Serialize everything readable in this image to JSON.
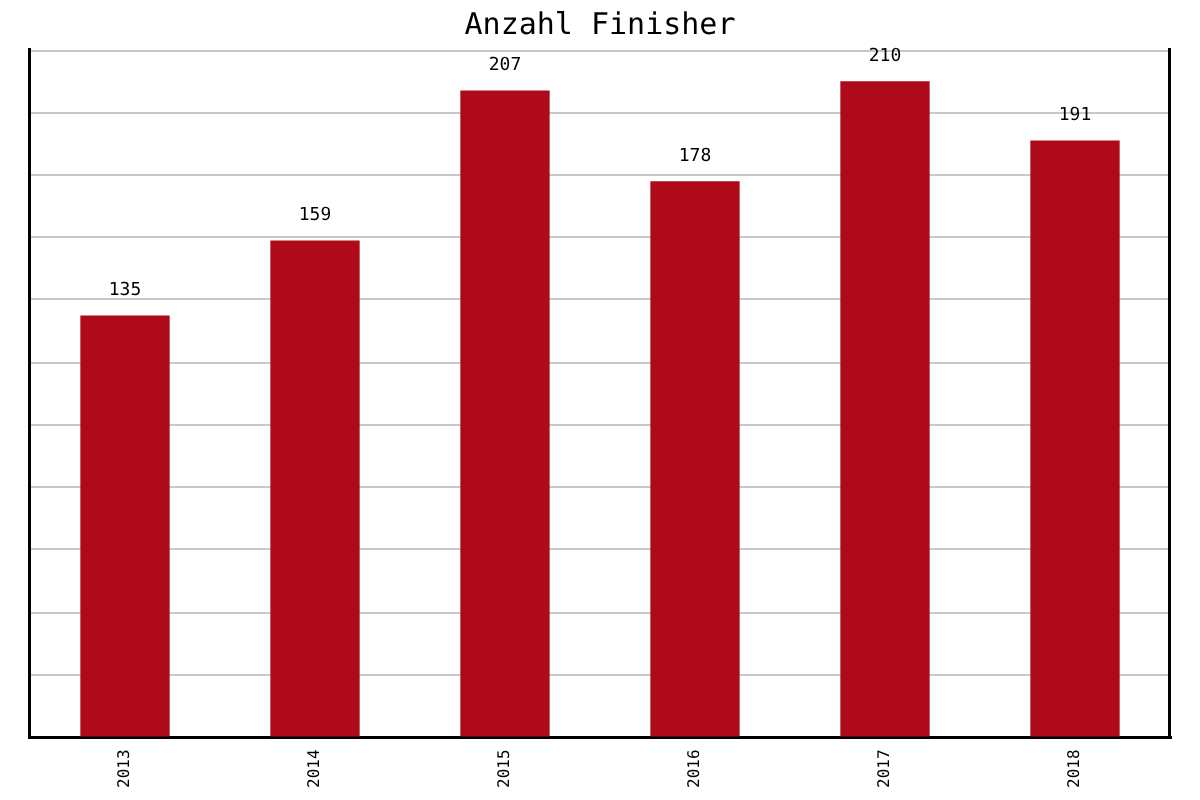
{
  "chart_data": {
    "type": "bar",
    "title": "Anzahl Finisher",
    "categories": [
      "2013",
      "2014",
      "2015",
      "2016",
      "2017",
      "2018"
    ],
    "values": [
      135,
      159,
      207,
      178,
      210,
      191
    ],
    "color": "#ae0a19",
    "ylim": [
      0,
      220
    ],
    "yticks": [
      {
        "value": 0,
        "label": null
      },
      {
        "value": 20,
        "label": null
      },
      {
        "value": 40,
        "label": null
      },
      {
        "value": 60,
        "label": null
      },
      {
        "value": 80,
        "label": null
      },
      {
        "value": 100,
        "label": null
      },
      {
        "value": 120,
        "label": null
      },
      {
        "value": 140,
        "label": null
      },
      {
        "value": 160,
        "label": null
      },
      {
        "value": 180,
        "label": null
      },
      {
        "value": 200,
        "label": null
      },
      {
        "value": 220,
        "label": null
      }
    ],
    "tick_labels": "x",
    "grid": "y",
    "data_labels": true
  }
}
